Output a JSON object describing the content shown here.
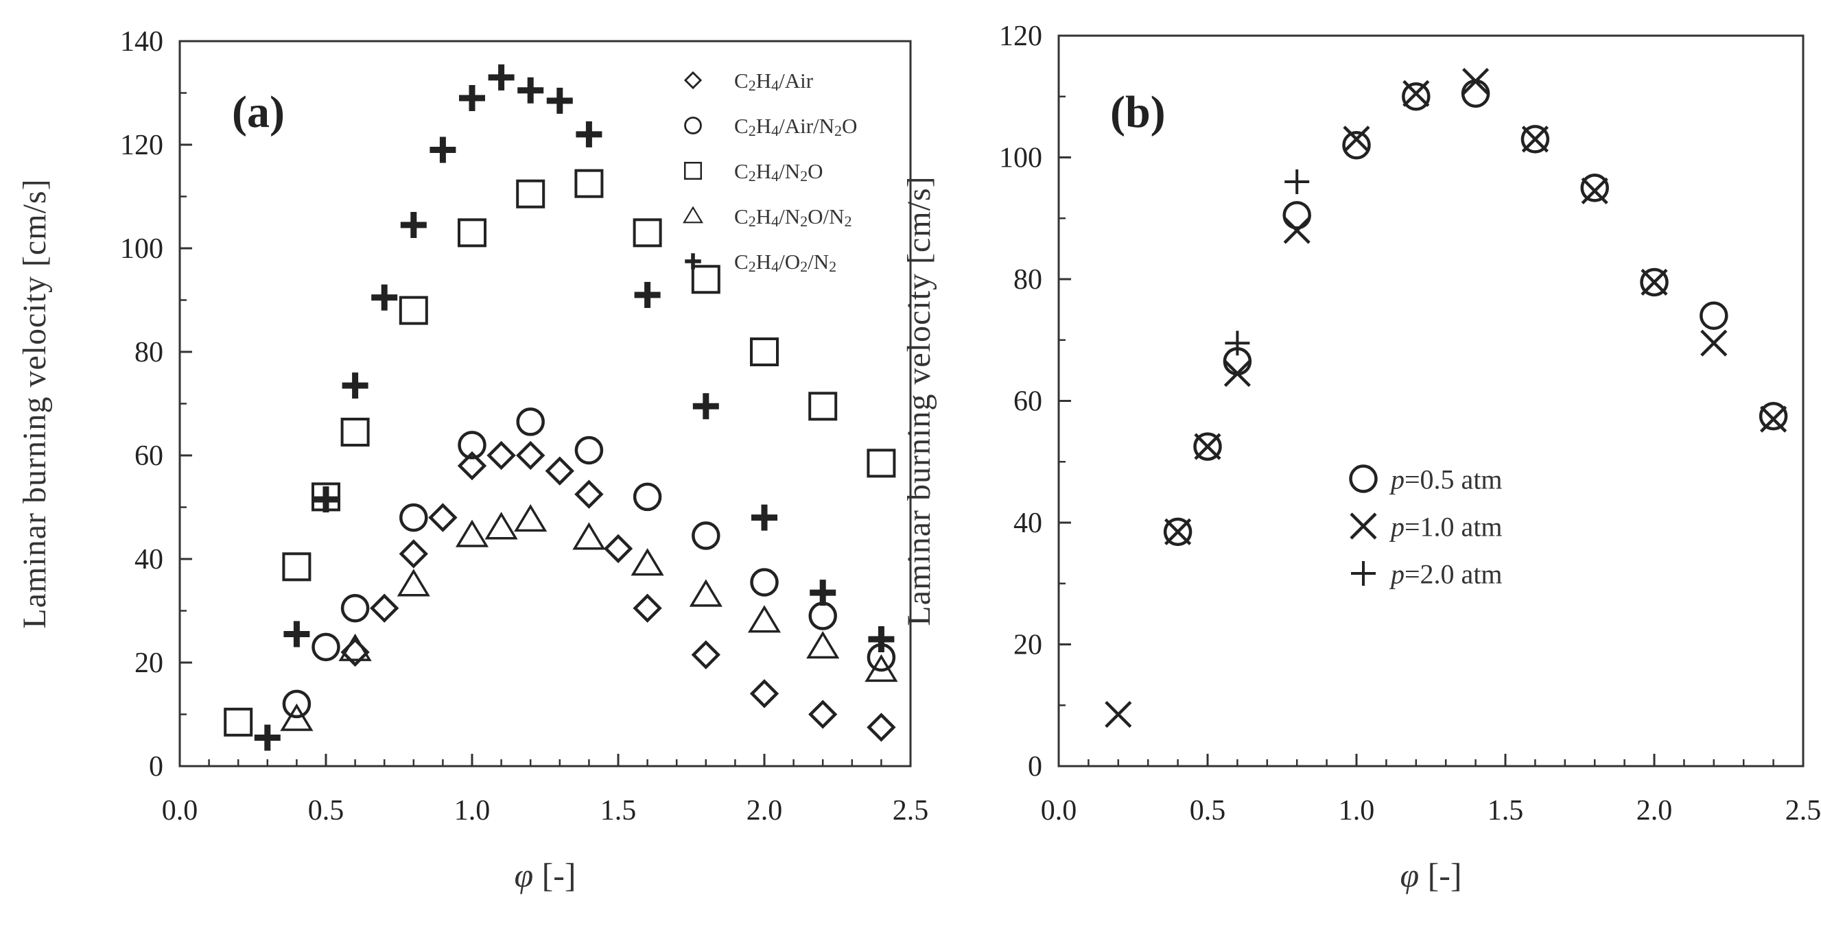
{
  "chart_data": [
    {
      "type": "scatter",
      "panel_label": "(a)",
      "xlabel": "φ [-]",
      "ylabel": "Laminar burning velocity [cm/s]",
      "xlim": [
        0,
        2.5
      ],
      "ylim": [
        0,
        140
      ],
      "x_ticks": [
        "0.0",
        "0.5",
        "1.0",
        "1.5",
        "2.0",
        "2.5"
      ],
      "y_ticks": [
        "0",
        "20",
        "40",
        "60",
        "80",
        "100",
        "120",
        "140"
      ],
      "legend_position": "top-right",
      "series": [
        {
          "name": "C2H4/Air",
          "marker": "diamond",
          "x": [
            0.6,
            0.7,
            0.8,
            0.9,
            1.0,
            1.1,
            1.2,
            1.3,
            1.4,
            1.5,
            1.6,
            1.8,
            2.0,
            2.2,
            2.4
          ],
          "y": [
            22,
            30.5,
            41,
            48,
            58,
            60,
            60,
            57,
            52.5,
            42,
            30.5,
            21.5,
            14,
            10,
            7.5
          ]
        },
        {
          "name": "C2H4/Air/N2O",
          "marker": "circle",
          "x": [
            0.4,
            0.5,
            0.6,
            0.8,
            1.0,
            1.2,
            1.4,
            1.6,
            1.8,
            2.0,
            2.2,
            2.4
          ],
          "y": [
            12,
            23,
            30.5,
            48,
            62,
            66.5,
            61,
            52,
            44.5,
            35.5,
            29,
            21
          ]
        },
        {
          "name": "C2H4/N2O",
          "marker": "square",
          "x": [
            0.2,
            0.4,
            0.5,
            0.6,
            0.8,
            1.0,
            1.2,
            1.4,
            1.6,
            1.8,
            2.0,
            2.2,
            2.4
          ],
          "y": [
            8.5,
            38.5,
            52,
            64.5,
            88,
            103,
            110.5,
            112.5,
            103,
            94,
            80,
            69.5,
            58.5
          ]
        },
        {
          "name": "C2H4/N2O/N2",
          "marker": "triangle",
          "x": [
            0.4,
            0.6,
            0.8,
            1.0,
            1.1,
            1.2,
            1.4,
            1.6,
            1.8,
            2.0,
            2.2,
            2.4
          ],
          "y": [
            9,
            22.5,
            35,
            44.5,
            46,
            47.5,
            44,
            39,
            33,
            28,
            23,
            18.5
          ]
        },
        {
          "name": "C2H4/O2/N2",
          "marker": "bold-plus",
          "x": [
            0.3,
            0.4,
            0.5,
            0.6,
            0.7,
            0.8,
            0.9,
            1.0,
            1.1,
            1.2,
            1.3,
            1.4,
            1.6,
            1.8,
            2.0,
            2.2,
            2.4
          ],
          "y": [
            5.5,
            25.5,
            51.5,
            73.5,
            90.5,
            104.5,
            119,
            129,
            133,
            130.5,
            128.5,
            122,
            91,
            69.5,
            48,
            33.5,
            24.5
          ]
        }
      ],
      "legend_rich": [
        [
          {
            "t": "C"
          },
          {
            "t": "2",
            "sub": true
          },
          {
            "t": "H"
          },
          {
            "t": "4",
            "sub": true
          },
          {
            "t": "/Air"
          }
        ],
        [
          {
            "t": "C"
          },
          {
            "t": "2",
            "sub": true
          },
          {
            "t": "H"
          },
          {
            "t": "4",
            "sub": true
          },
          {
            "t": "/Air/N"
          },
          {
            "t": "2",
            "sub": true
          },
          {
            "t": "O"
          }
        ],
        [
          {
            "t": "C"
          },
          {
            "t": "2",
            "sub": true
          },
          {
            "t": "H"
          },
          {
            "t": "4",
            "sub": true
          },
          {
            "t": "/N"
          },
          {
            "t": "2",
            "sub": true
          },
          {
            "t": "O"
          }
        ],
        [
          {
            "t": "C"
          },
          {
            "t": "2",
            "sub": true
          },
          {
            "t": "H"
          },
          {
            "t": "4",
            "sub": true
          },
          {
            "t": "/N"
          },
          {
            "t": "2",
            "sub": true
          },
          {
            "t": "O/N"
          },
          {
            "t": "2",
            "sub": true
          }
        ],
        [
          {
            "t": "C"
          },
          {
            "t": "2",
            "sub": true
          },
          {
            "t": "H"
          },
          {
            "t": "4",
            "sub": true
          },
          {
            "t": "/O"
          },
          {
            "t": "2",
            "sub": true
          },
          {
            "t": "/N"
          },
          {
            "t": "2",
            "sub": true
          }
        ]
      ]
    },
    {
      "type": "scatter",
      "panel_label": "(b)",
      "xlabel": "φ [-]",
      "ylabel": "Laminar burning velocity [cm/s]",
      "xlim": [
        0,
        2.5
      ],
      "ylim": [
        0,
        120
      ],
      "x_ticks": [
        "0.0",
        "0.5",
        "1.0",
        "1.5",
        "2.0",
        "2.5"
      ],
      "y_ticks": [
        "0",
        "20",
        "40",
        "60",
        "80",
        "100",
        "120"
      ],
      "legend_position": "center",
      "series": [
        {
          "name": "p=0.5 atm",
          "marker": "circle",
          "x": [
            0.4,
            0.5,
            0.6,
            0.8,
            1.0,
            1.2,
            1.4,
            1.6,
            1.8,
            2.0,
            2.2,
            2.4
          ],
          "y": [
            38.5,
            52.5,
            66.5,
            90.5,
            102,
            110,
            110.5,
            103,
            95,
            79.5,
            74,
            57.5
          ]
        },
        {
          "name": "p=1.0 atm",
          "marker": "x",
          "x": [
            0.2,
            0.4,
            0.5,
            0.6,
            0.8,
            1.0,
            1.2,
            1.4,
            1.6,
            1.8,
            2.0,
            2.2,
            2.4
          ],
          "y": [
            8.5,
            38.5,
            52.5,
            64.5,
            88,
            103,
            110.5,
            112.5,
            103,
            94.5,
            79.5,
            69.5,
            57
          ]
        },
        {
          "name": "p=2.0 atm",
          "marker": "plus",
          "x": [
            0.6,
            0.8
          ],
          "y": [
            69.5,
            96
          ]
        }
      ],
      "legend_rich": [
        [
          {
            "t": "p",
            "it": true
          },
          {
            "t": "=0.5 atm"
          }
        ],
        [
          {
            "t": "p",
            "it": true
          },
          {
            "t": "=1.0 atm"
          }
        ],
        [
          {
            "t": "p",
            "it": true
          },
          {
            "t": "=2.0 atm"
          }
        ]
      ]
    }
  ]
}
